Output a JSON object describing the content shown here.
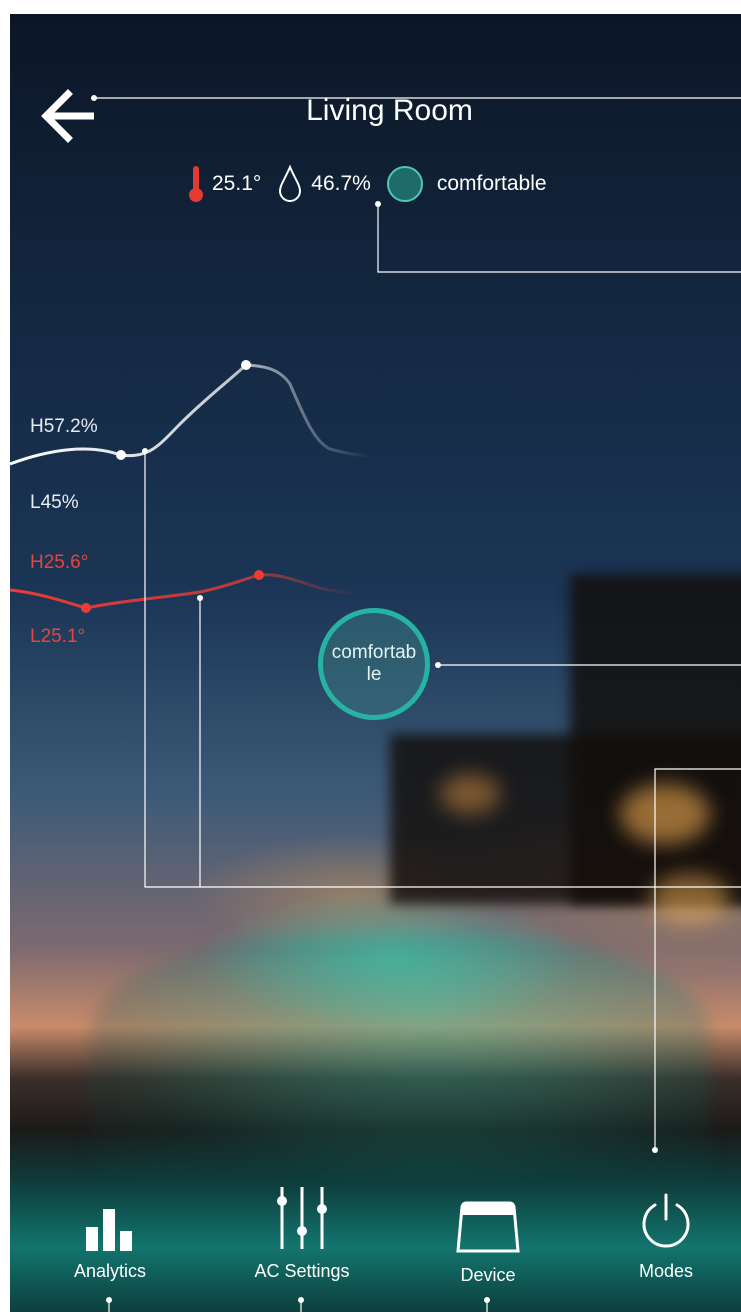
{
  "header": {
    "title": "Living Room",
    "back_icon": "arrow-left-icon"
  },
  "status": {
    "temperature": "25.1°",
    "humidity": "46.7%",
    "comfort": "comfortable",
    "temperature_icon": "thermometer-icon",
    "humidity_icon": "water-drop-icon",
    "comfort_icon": "comfort-dot-icon"
  },
  "chart_data": [
    {
      "type": "line",
      "series": [
        {
          "name": "",
          "color": "#ffffff"
        }
      ],
      "high_label": "H57.2%",
      "low_label": "L45%"
    },
    {
      "type": "line",
      "series": [
        {
          "name": "",
          "color": "#e9453f"
        }
      ],
      "high_label": "H25.6°",
      "low_label": "L25.1°"
    }
  ],
  "comfort_indicator": {
    "label": "comfortable",
    "color": "#27b3a4"
  },
  "nav": {
    "items": [
      {
        "label": "Analytics",
        "icon": "bar-chart-icon"
      },
      {
        "label": "AC Settings",
        "icon": "sliders-icon"
      },
      {
        "label": "Device",
        "icon": "device-icon"
      },
      {
        "label": "Modes",
        "icon": "power-icon"
      }
    ]
  }
}
